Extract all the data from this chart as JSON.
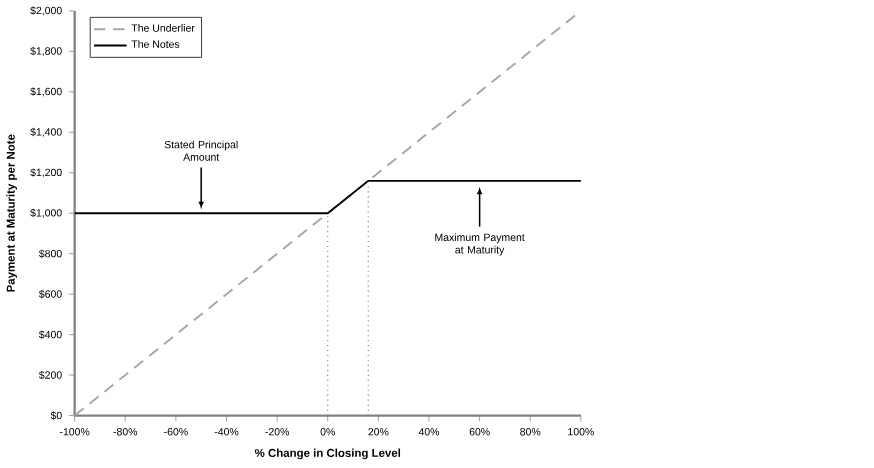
{
  "chart_data": {
    "type": "line",
    "xlabel": "% Change in Closing Level",
    "ylabel": "Payment at Maturity per Note",
    "xlim": [
      -100,
      100
    ],
    "ylim": [
      0,
      2000
    ],
    "xticks": [
      {
        "value": -100,
        "label": "-100%"
      },
      {
        "value": -80,
        "label": "-80%"
      },
      {
        "value": -60,
        "label": "-60%"
      },
      {
        "value": -40,
        "label": "-40%"
      },
      {
        "value": -20,
        "label": "-20%"
      },
      {
        "value": 0,
        "label": "0%"
      },
      {
        "value": 20,
        "label": "20%"
      },
      {
        "value": 40,
        "label": "40%"
      },
      {
        "value": 60,
        "label": "60%"
      },
      {
        "value": 80,
        "label": "80%"
      },
      {
        "value": 100,
        "label": "100%"
      }
    ],
    "yticks": [
      {
        "value": 0,
        "label": "$0"
      },
      {
        "value": 200,
        "label": "$200"
      },
      {
        "value": 400,
        "label": "$400"
      },
      {
        "value": 600,
        "label": "$600"
      },
      {
        "value": 800,
        "label": "$800"
      },
      {
        "value": 1000,
        "label": "$1,000"
      },
      {
        "value": 1200,
        "label": "$1,200"
      },
      {
        "value": 1400,
        "label": "$1,400"
      },
      {
        "value": 1600,
        "label": "$1,600"
      },
      {
        "value": 1800,
        "label": "$1,800"
      },
      {
        "value": 2000,
        "label": "$2,000"
      }
    ],
    "series": [
      {
        "name": "The Underlier",
        "color": "#a6a6a6",
        "line_style": "dashed",
        "x": [
          -100,
          100
        ],
        "values": [
          0,
          2000
        ]
      },
      {
        "name": "The Notes",
        "color": "#000000",
        "line_style": "solid",
        "x": [
          -100,
          0,
          16,
          100
        ],
        "values": [
          1000,
          1000,
          1160,
          1160
        ]
      }
    ],
    "ref_lines": [
      {
        "axis": "x",
        "value": 0,
        "color": "#808080",
        "line_style": "dotted"
      },
      {
        "axis": "x",
        "value": 16,
        "color": "#808080",
        "line_style": "dotted"
      }
    ],
    "annotations": [
      {
        "text": "Stated Principal Amount",
        "x": -50,
        "y": 1000
      },
      {
        "text": "Maximum Payment at Maturity",
        "x": 60,
        "y": 1160
      }
    ],
    "legend": "top left",
    "grid": false,
    "marker": "none"
  }
}
